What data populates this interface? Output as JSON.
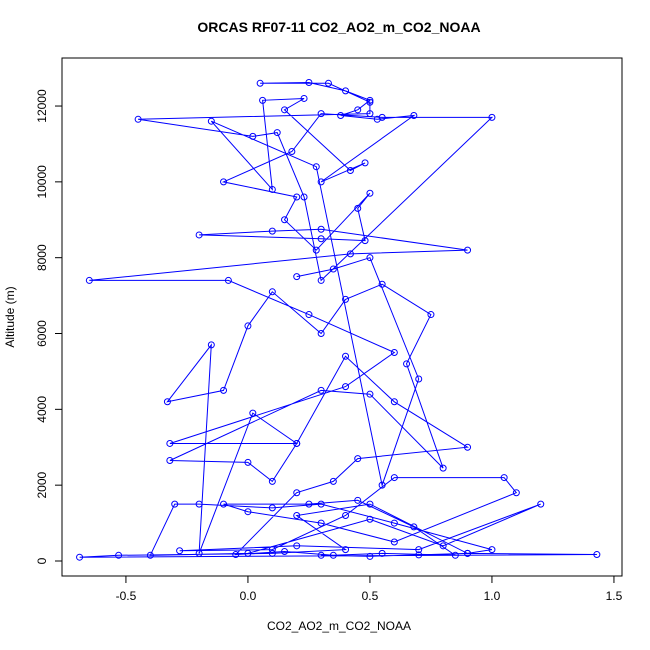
{
  "chart_data": {
    "type": "line",
    "title": "ORCAS RF07-11 CO2_AO2_m_CO2_NOAA",
    "x_label": "CO2_AO2_m_CO2_NOAA",
    "y_label": "Altitude (m)",
    "color": "#0000ff",
    "markers": true,
    "xlim": [
      -0.762,
      1.533
    ],
    "ylim": [
      -396,
      13267
    ],
    "xticks": [
      -0.5,
      {
        "value": 0,
        "label": "0.0"
      },
      0.5,
      {
        "value": 1,
        "label": "1.0"
      },
      1.5
    ],
    "yticks": [
      0,
      2000,
      4000,
      6000,
      8000,
      10000,
      12000
    ],
    "x": [
      0.3,
      0.5,
      0.7,
      0.9,
      1.43,
      -0.69,
      -0.53,
      0.1,
      0.4,
      0.2,
      0.5,
      0.9,
      1.0,
      0.6,
      0.3,
      0.1,
      -0.2,
      -0.3,
      -0.4,
      0.0,
      0.5,
      0.8,
      1.2,
      0.7,
      0.2,
      -0.28,
      0.1,
      0.4,
      0.6,
      1.05,
      1.1,
      0.6,
      0.3,
      0.0,
      -0.1,
      0.25,
      0.45,
      0.68,
      0.85,
      0.55,
      0.35,
      0.15,
      -0.05,
      0.2,
      0.35,
      0.45,
      0.9,
      0.6,
      0.4,
      0.2,
      0.1,
      0.0,
      -0.32,
      0.3,
      0.5,
      0.8,
      0.65,
      0.75,
      0.55,
      0.4,
      0.3,
      0.1,
      0.0,
      -0.1,
      -0.33,
      -0.15,
      -0.2,
      0.02,
      0.2,
      -0.32,
      0.4,
      0.6,
      0.25,
      -0.08,
      -0.65,
      0.42,
      0.9,
      0.3,
      0.1,
      -0.2,
      0.3,
      0.48,
      0.45,
      0.5,
      0.28,
      0.15,
      0.2,
      -0.1,
      0.18,
      0.3,
      0.55,
      1.0,
      0.3,
      0.23,
      0.12,
      0.02,
      -0.45,
      0.5,
      0.5,
      0.33,
      0.05,
      0.25,
      0.4,
      0.5,
      0.45,
      0.38,
      0.53,
      0.68,
      0.3,
      0.48,
      0.42,
      0.15,
      0.23,
      0.06,
      0.1,
      -0.15,
      0.28,
      0.55,
      0.7,
      0.5,
      0.35,
      0.2
    ],
    "values": [
      150,
      120,
      160,
      200,
      170,
      100,
      150,
      200,
      300,
      1200,
      1500,
      200,
      300,
      1000,
      1500,
      1400,
      1500,
      1500,
      150,
      200,
      1100,
      400,
      1500,
      300,
      400,
      270,
      300,
      1200,
      2200,
      2200,
      1800,
      500,
      1000,
      1300,
      1500,
      1500,
      1600,
      900,
      150,
      200,
      150,
      250,
      170,
      1800,
      2100,
      2700,
      3000,
      4200,
      5400,
      3100,
      2100,
      2600,
      2650,
      4500,
      4400,
      2450,
      5200,
      6500,
      7300,
      6900,
      6000,
      7100,
      6200,
      4500,
      4200,
      5700,
      200,
      3900,
      3100,
      3100,
      4600,
      5500,
      6500,
      7400,
      7400,
      8100,
      8200,
      8750,
      8700,
      8600,
      8500,
      8450,
      9300,
      9700,
      8200,
      9000,
      9600,
      10000,
      10800,
      11800,
      11700,
      11700,
      7400,
      9600,
      11300,
      11200,
      11650,
      11800,
      12100,
      12600,
      12600,
      12620,
      12400,
      12150,
      11900,
      11750,
      11650,
      11750,
      10000,
      10500,
      10300,
      11900,
      12200,
      12150,
      9800,
      11600,
      10400,
      2000,
      4800,
      8000,
      7700,
      7500
    ]
  }
}
